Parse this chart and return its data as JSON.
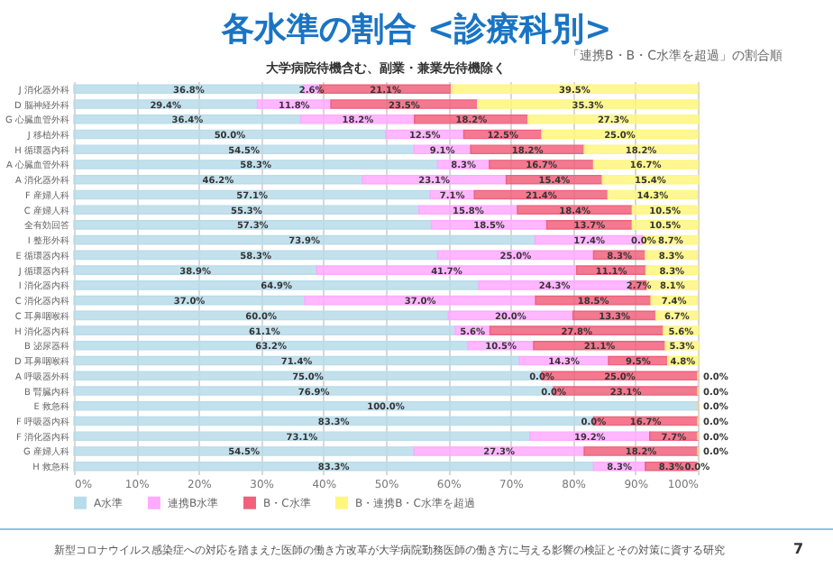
{
  "chart_data": {
    "type": "bar",
    "orientation": "horizontal",
    "stacked": true,
    "title": "各水準の割合 <診療科別>",
    "subtitle": "大学病院待機含む、副業・兼業先待機除く",
    "annotations": [
      "「連携B・B・C水準を超過」の割合順",
      "新型コロナウイルス感染症への対応を踏まえた医師の働き方改革が大学病院勤務医師の働き方に与える影響の検証とその対策に資する研究",
      "7"
    ],
    "categories": [
      "J 消化器外科",
      "D 脳神経外科",
      "G 心臓血管外科",
      "J 移植外科",
      "H 循環器内科",
      "A 心臓血管外科",
      "A 消化器外科",
      "F 産婦人科",
      "C 産婦人科",
      "全有効回答",
      "I 整形外科",
      "E 循環器内科",
      "J 循環器内科",
      "I 消化器内科",
      "C 消化器内科",
      "C 耳鼻咽喉科",
      "H 消化器内科",
      "B 泌尿器科",
      "D 耳鼻咽喉科",
      "A 呼吸器外科",
      "B 腎臓内科",
      "E 救急科",
      "F 呼吸器内科",
      "F 消化器内科",
      "G 産婦人科",
      "H 救急科"
    ],
    "series": [
      {
        "name": "A水準",
        "color": "#b9dcea",
        "values": [
          36.8,
          29.4,
          36.4,
          50.0,
          54.5,
          58.3,
          46.2,
          57.1,
          55.3,
          57.3,
          73.9,
          58.3,
          38.9,
          64.9,
          37.0,
          60.0,
          61.1,
          63.2,
          71.4,
          75.0,
          76.9,
          100.0,
          83.3,
          73.1,
          54.5,
          83.3
        ],
        "value_labels": [
          "36.8%",
          "29.4%",
          "36.4%",
          "50.0%",
          "54.5%",
          "58.3%",
          "46.2%",
          "57.1%",
          "55.3%",
          "57.3%",
          "73.9%",
          "58.3%",
          "38.9%",
          "64.9%",
          "37.0%",
          "60.0%",
          "61.1%",
          "63.2%",
          "71.4%",
          "75.0%",
          "76.9%",
          "100.0%",
          "83.3%",
          "73.1%",
          "54.5%",
          "83.3%"
        ]
      },
      {
        "name": "連携B水準",
        "color": "#ffaaff",
        "values": [
          2.6,
          11.8,
          18.2,
          12.5,
          9.1,
          8.3,
          23.1,
          7.1,
          15.8,
          18.5,
          17.4,
          25.0,
          41.7,
          24.3,
          37.0,
          20.0,
          5.6,
          10.5,
          14.3,
          0.0,
          0.0,
          0.0,
          0.0,
          19.2,
          27.3,
          8.3
        ],
        "value_labels": [
          "2.6%",
          "11.8%",
          "18.2%",
          "12.5%",
          "9.1%",
          "8.3%",
          "23.1%",
          "7.1%",
          "15.8%",
          "18.5%",
          "17.4%",
          "25.0%",
          "41.7%",
          "24.3%",
          "37.0%",
          "20.0%",
          "5.6%",
          "10.5%",
          "14.3%",
          "0.0%",
          "0.0%",
          null,
          "0.0%",
          "19.2%",
          "27.3%",
          "8.3%"
        ]
      },
      {
        "name": "B・C水準",
        "color": "#f0627c",
        "values": [
          21.1,
          23.5,
          18.2,
          12.5,
          18.2,
          16.7,
          15.4,
          21.4,
          18.4,
          13.7,
          0.0,
          8.3,
          11.1,
          2.7,
          18.5,
          13.3,
          27.8,
          21.1,
          9.5,
          25.0,
          23.1,
          0.0,
          16.7,
          7.7,
          18.2,
          8.3
        ],
        "value_labels": [
          "21.1%",
          "23.5%",
          "18.2%",
          "12.5%",
          "18.2%",
          "16.7%",
          "15.4%",
          "21.4%",
          "18.4%",
          "13.7%",
          "0.0%",
          "8.3%",
          "11.1%",
          "2.7%",
          "18.5%",
          "13.3%",
          "27.8%",
          "21.1%",
          "9.5%",
          "25.0%",
          "23.1%",
          null,
          "16.7%",
          "7.7%",
          "18.2%",
          "8.3%"
        ]
      },
      {
        "name": "B・連携B・C水準を超過",
        "color": "#fff680",
        "values": [
          39.5,
          35.3,
          27.3,
          25.0,
          18.2,
          16.7,
          15.4,
          14.3,
          10.5,
          10.5,
          8.7,
          8.3,
          8.3,
          8.1,
          7.4,
          6.7,
          5.6,
          5.3,
          4.8,
          0.0,
          0.0,
          0.0,
          0.0,
          0.0,
          0.0,
          0.0
        ],
        "value_labels": [
          "39.5%",
          "35.3%",
          "27.3%",
          "25.0%",
          "18.2%",
          "16.7%",
          "15.4%",
          "14.3%",
          "10.5%",
          "10.5%",
          "8.7%",
          "8.3%",
          "8.3%",
          "8.1%",
          "7.4%",
          "6.7%",
          "5.6%",
          "5.3%",
          "4.8%",
          "0.0%",
          "0.0%",
          "0.0%",
          "0.0%",
          "0.0%",
          "0.0%",
          "0.0%"
        ]
      }
    ],
    "xlim": [
      0,
      100
    ],
    "xticks": [
      {
        "value": 0,
        "label": "0%"
      },
      {
        "value": 10,
        "label": "10%"
      },
      {
        "value": 20,
        "label": "20%"
      },
      {
        "value": 30,
        "label": "30%"
      },
      {
        "value": 40,
        "label": "40%"
      },
      {
        "value": 50,
        "label": "50%"
      },
      {
        "value": 60,
        "label": "60%"
      },
      {
        "value": 70,
        "label": "70%"
      },
      {
        "value": 80,
        "label": "80%"
      },
      {
        "value": 90,
        "label": "90%"
      },
      {
        "value": 100,
        "label": "100%"
      }
    ],
    "grid": "x",
    "legend": "bottom"
  }
}
